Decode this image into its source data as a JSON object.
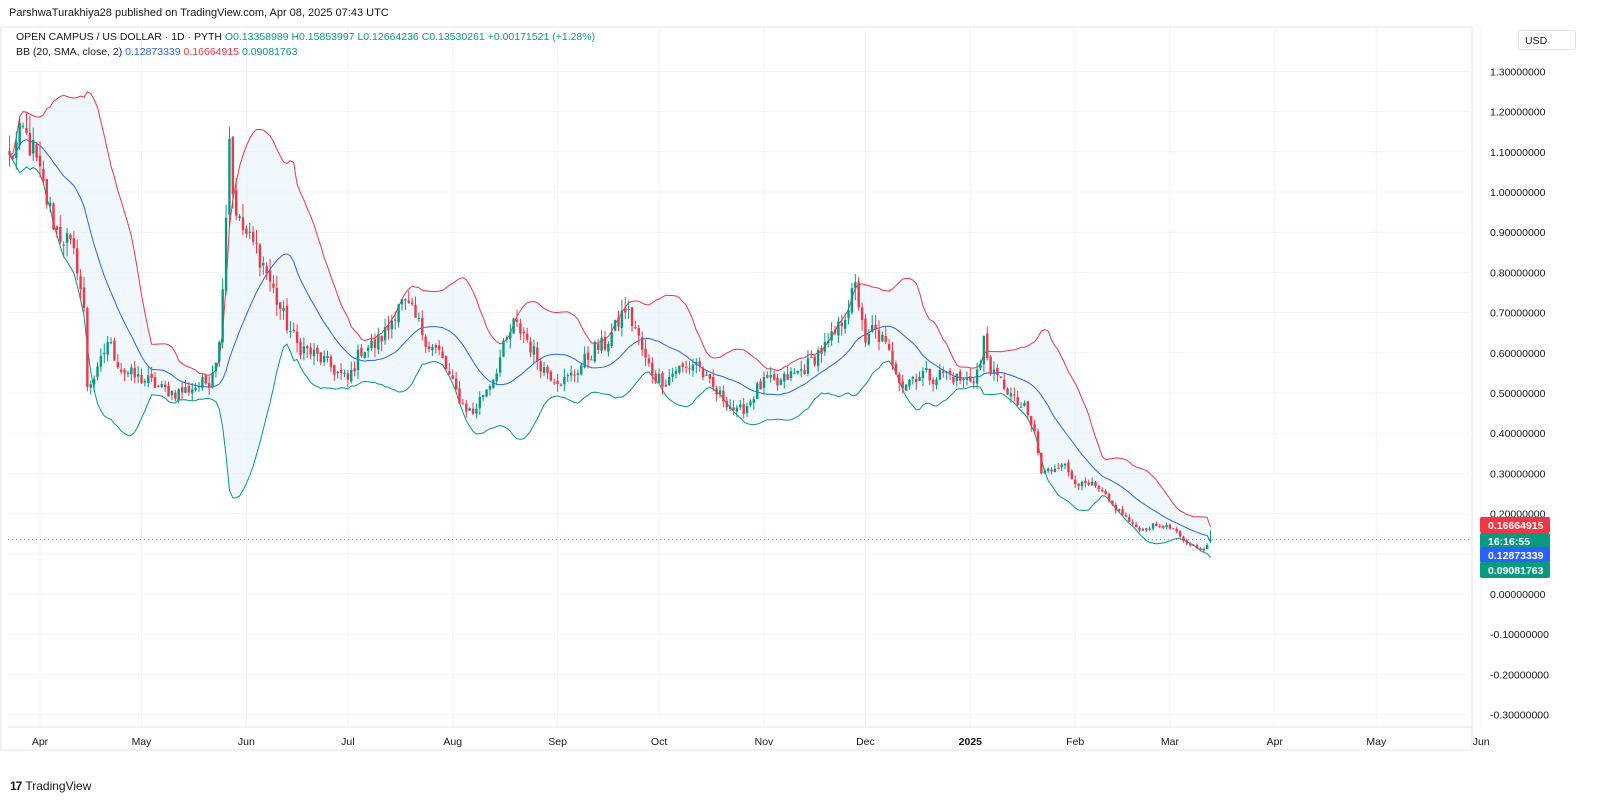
{
  "publisher": "ParshwaTurakhiya28 published on TradingView.com, Apr 08, 2025 07:43 UTC",
  "legend": {
    "symbol": "OPEN CAMPUS / US DOLLAR · 1D · PYTH",
    "open": "O0.13358989",
    "high": "H0.15853997",
    "low": "L0.12664236",
    "close": "C0.13530261",
    "change": "+0.00171521 (+1.28%)",
    "bb_label": "BB (20, SMA, close, 2)",
    "bb_basis": "0.12873339",
    "bb_upper": "0.16664915",
    "bb_lower": "0.09081763"
  },
  "currency": "USD",
  "footer": {
    "logo_mark": "17",
    "logo_text": "TradingView"
  },
  "colors": {
    "up": "#089981",
    "down": "#f23645",
    "basis": "#2962ff",
    "upper": "#f23645",
    "lower": "#089981",
    "band_fill": "#e3f2fd"
  },
  "price_labels": {
    "upper": "0.16664915",
    "countdown": "16:16:55",
    "basis": "0.12873339",
    "lower": "0.09081763"
  },
  "chart_data": {
    "type": "candlestick",
    "title": "OPEN CAMPUS / US DOLLAR · 1D · PYTH",
    "ylim": [
      -0.33,
      1.37
    ],
    "y_ticks": [
      "1.30000000",
      "1.20000000",
      "1.10000000",
      "1.00000000",
      "0.90000000",
      "0.80000000",
      "0.70000000",
      "0.60000000",
      "0.50000000",
      "0.40000000",
      "0.30000000",
      "0.20000000",
      "0.00000000",
      "-0.10000000",
      "-0.20000000",
      "-0.30000000"
    ],
    "y_tick_values": [
      1.3,
      1.2,
      1.1,
      1.0,
      0.9,
      0.8,
      0.7,
      0.6,
      0.5,
      0.4,
      0.3,
      0.2,
      0.0,
      -0.1,
      -0.2,
      -0.3
    ],
    "x_labels": [
      {
        "label": "Apr",
        "day": 0
      },
      {
        "label": "May",
        "day": 30
      },
      {
        "label": "Jun",
        "day": 61
      },
      {
        "label": "Jul",
        "day": 91
      },
      {
        "label": "Aug",
        "day": 122
      },
      {
        "label": "Sep",
        "day": 153
      },
      {
        "label": "Oct",
        "day": 183
      },
      {
        "label": "Nov",
        "day": 214
      },
      {
        "label": "Dec",
        "day": 244
      },
      {
        "label": "2025",
        "day": 275,
        "bold": true
      },
      {
        "label": "Feb",
        "day": 306
      },
      {
        "label": "Mar",
        "day": 334
      },
      {
        "label": "Apr",
        "day": 365
      },
      {
        "label": "May",
        "day": 395
      },
      {
        "label": "Jun",
        "day": 426
      }
    ],
    "close_anchors": [
      [
        -9,
        1.08
      ],
      [
        -5,
        1.15
      ],
      [
        -2,
        1.1
      ],
      [
        2,
        0.98
      ],
      [
        5,
        0.9
      ],
      [
        8,
        0.88
      ],
      [
        11,
        0.82
      ],
      [
        13,
        0.7
      ],
      [
        14,
        0.52
      ],
      [
        17,
        0.55
      ],
      [
        20,
        0.63
      ],
      [
        24,
        0.56
      ],
      [
        28,
        0.54
      ],
      [
        32,
        0.53
      ],
      [
        36,
        0.51
      ],
      [
        40,
        0.5
      ],
      [
        44,
        0.51
      ],
      [
        47,
        0.52
      ],
      [
        50,
        0.53
      ],
      [
        53,
        0.62
      ],
      [
        55,
        0.95
      ],
      [
        56,
        1.15
      ],
      [
        57,
        1.0
      ],
      [
        59,
        0.92
      ],
      [
        62,
        0.88
      ],
      [
        64,
        0.86
      ],
      [
        67,
        0.8
      ],
      [
        70,
        0.73
      ],
      [
        73,
        0.67
      ],
      [
        76,
        0.62
      ],
      [
        80,
        0.6
      ],
      [
        84,
        0.58
      ],
      [
        88,
        0.55
      ],
      [
        91,
        0.53
      ],
      [
        95,
        0.61
      ],
      [
        99,
        0.62
      ],
      [
        103,
        0.66
      ],
      [
        106,
        0.73
      ],
      [
        109,
        0.71
      ],
      [
        112,
        0.67
      ],
      [
        115,
        0.62
      ],
      [
        118,
        0.6
      ],
      [
        122,
        0.52
      ],
      [
        125,
        0.47
      ],
      [
        128,
        0.45
      ],
      [
        131,
        0.5
      ],
      [
        134,
        0.54
      ],
      [
        137,
        0.61
      ],
      [
        140,
        0.67
      ],
      [
        143,
        0.65
      ],
      [
        146,
        0.6
      ],
      [
        149,
        0.56
      ],
      [
        152,
        0.54
      ],
      [
        155,
        0.53
      ],
      [
        158,
        0.55
      ],
      [
        161,
        0.58
      ],
      [
        164,
        0.61
      ],
      [
        167,
        0.62
      ],
      [
        170,
        0.66
      ],
      [
        173,
        0.71
      ],
      [
        176,
        0.66
      ],
      [
        179,
        0.58
      ],
      [
        182,
        0.54
      ],
      [
        185,
        0.53
      ],
      [
        188,
        0.56
      ],
      [
        191,
        0.56
      ],
      [
        194,
        0.58
      ],
      [
        197,
        0.53
      ],
      [
        200,
        0.5
      ],
      [
        203,
        0.48
      ],
      [
        206,
        0.45
      ],
      [
        209,
        0.47
      ],
      [
        212,
        0.51
      ],
      [
        215,
        0.53
      ],
      [
        218,
        0.52
      ],
      [
        221,
        0.54
      ],
      [
        224,
        0.55
      ],
      [
        227,
        0.57
      ],
      [
        230,
        0.6
      ],
      [
        233,
        0.62
      ],
      [
        236,
        0.66
      ],
      [
        239,
        0.72
      ],
      [
        241,
        0.76
      ],
      [
        243,
        0.69
      ],
      [
        244,
        0.61
      ],
      [
        246,
        0.66
      ],
      [
        249,
        0.63
      ],
      [
        252,
        0.58
      ],
      [
        255,
        0.52
      ],
      [
        258,
        0.54
      ],
      [
        261,
        0.55
      ],
      [
        264,
        0.54
      ],
      [
        267,
        0.55
      ],
      [
        270,
        0.54
      ],
      [
        273,
        0.53
      ],
      [
        276,
        0.54
      ],
      [
        278,
        0.57
      ],
      [
        279,
        0.63
      ],
      [
        280,
        0.59
      ],
      [
        282,
        0.54
      ],
      [
        285,
        0.52
      ],
      [
        288,
        0.48
      ],
      [
        291,
        0.46
      ],
      [
        294,
        0.4
      ],
      [
        296,
        0.3
      ],
      [
        299,
        0.31
      ],
      [
        302,
        0.33
      ],
      [
        305,
        0.29
      ],
      [
        308,
        0.27
      ],
      [
        311,
        0.27
      ],
      [
        314,
        0.25
      ],
      [
        317,
        0.22
      ],
      [
        320,
        0.2
      ],
      [
        323,
        0.17
      ],
      [
        326,
        0.16
      ],
      [
        329,
        0.17
      ],
      [
        332,
        0.17
      ],
      [
        335,
        0.16
      ],
      [
        338,
        0.13
      ],
      [
        341,
        0.12
      ],
      [
        344,
        0.11
      ],
      [
        346,
        0.1353
      ]
    ],
    "candle_range_days": [
      -9,
      346
    ],
    "bands_window": 20,
    "bands_mult": 2,
    "last_close": 0.13530261,
    "last": {
      "open": 0.13358989,
      "high": 0.15853997,
      "low": 0.12664236,
      "close": 0.13530261
    },
    "bb_last": {
      "basis": 0.12873339,
      "upper": 0.16664915,
      "lower": 0.09081763
    }
  }
}
